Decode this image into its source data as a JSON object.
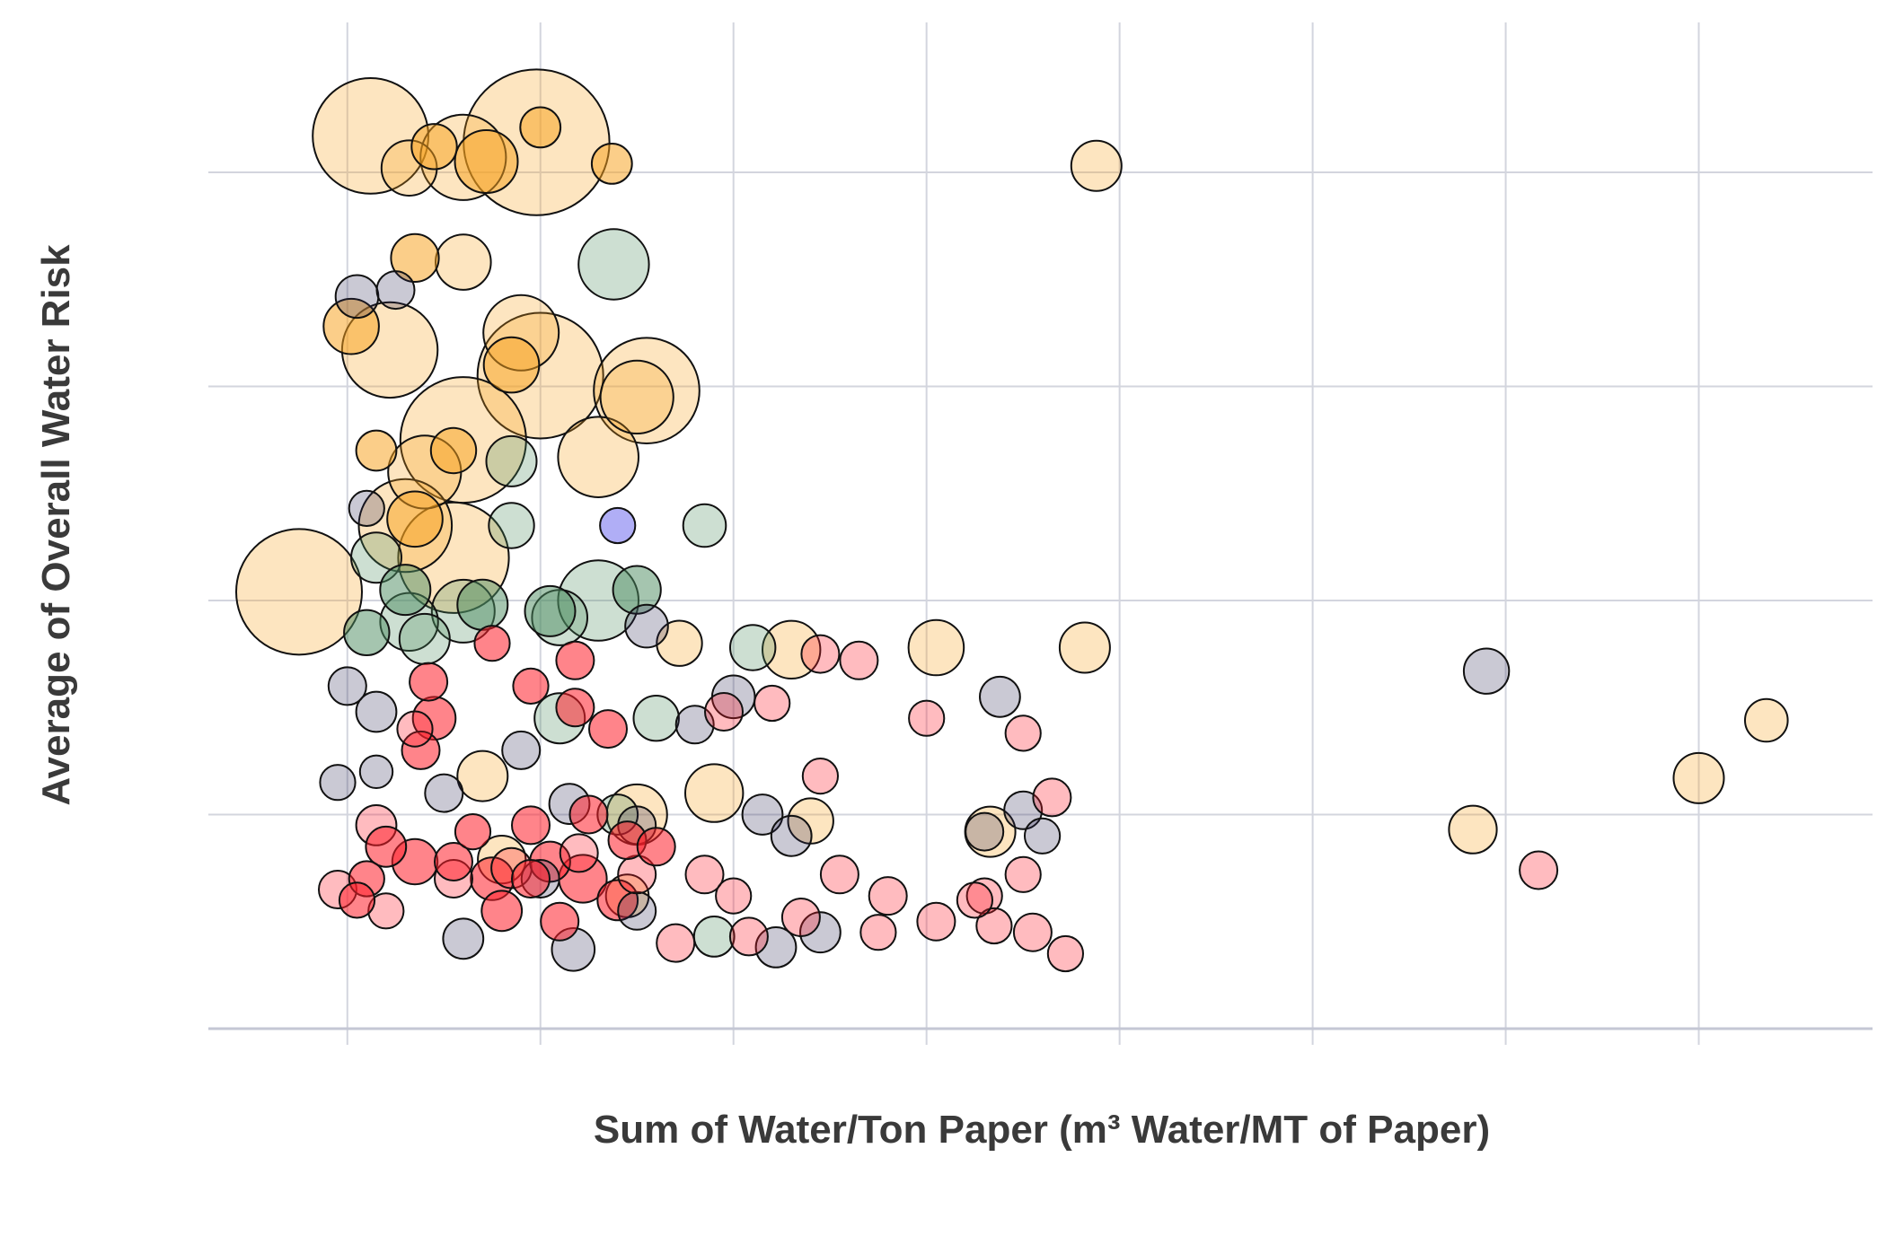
{
  "chart_data": {
    "type": "scatter",
    "xlabel": "Sum of Water/Ton Paper (m³ Water/MT of Paper)",
    "ylabel": "Average of Overall Water Risk",
    "xlim": [
      -0.72,
      7.9
    ],
    "ylim": [
      0,
      4.7
    ],
    "grid": true,
    "legend": "none",
    "series": [
      {
        "color": "#f8a21c",
        "fill_alpha": 0.28,
        "points": [
          [
            0.12,
            4.17,
            4.6
          ],
          [
            0.98,
            4.14,
            5.8
          ],
          [
            0.6,
            4.07,
            3.4
          ],
          [
            3.88,
            4.03,
            2.0
          ],
          [
            0.32,
            4.02,
            2.2
          ],
          [
            0.6,
            3.58,
            2.2
          ],
          [
            0.22,
            3.17,
            3.8
          ],
          [
            1.0,
            3.05,
            5.0
          ],
          [
            1.55,
            2.98,
            4.2
          ],
          [
            0.6,
            2.75,
            5.0
          ],
          [
            1.3,
            2.67,
            3.2
          ],
          [
            0.3,
            2.35,
            3.7
          ],
          [
            -0.25,
            2.04,
            5.0
          ],
          [
            0.55,
            2.2,
            4.4
          ],
          [
            3.05,
            1.78,
            2.2
          ],
          [
            3.82,
            1.78,
            2.0
          ],
          [
            2.3,
            1.77,
            2.3
          ],
          [
            1.72,
            1.8,
            1.8
          ],
          [
            0.7,
            1.18,
            2.0
          ],
          [
            1.9,
            1.1,
            2.3
          ],
          [
            1.5,
            1.0,
            2.4
          ],
          [
            2.4,
            0.97,
            1.8
          ],
          [
            0.8,
            0.79,
            1.9
          ],
          [
            1.45,
            0.62,
            1.7
          ],
          [
            3.33,
            0.92,
            2.0
          ],
          [
            5.83,
            0.93,
            1.9
          ],
          [
            7.0,
            1.17,
            2.0
          ],
          [
            7.35,
            1.44,
            1.7
          ],
          [
            0.9,
            3.25,
            3.0
          ],
          [
            1.5,
            2.95,
            2.9
          ],
          [
            0.4,
            2.6,
            2.9
          ]
        ]
      },
      {
        "color": "#f8a21c",
        "fill_alpha": 0.52,
        "points": [
          [
            0.45,
            4.12,
            1.8
          ],
          [
            0.72,
            4.05,
            2.5
          ],
          [
            1.0,
            4.21,
            1.6
          ],
          [
            1.37,
            4.04,
            1.6
          ],
          [
            0.35,
            3.6,
            1.9
          ],
          [
            0.02,
            3.28,
            2.2
          ],
          [
            0.15,
            2.7,
            1.6
          ],
          [
            0.55,
            2.7,
            1.8
          ],
          [
            0.35,
            2.38,
            2.2
          ],
          [
            0.85,
            3.1,
            2.2
          ]
        ]
      },
      {
        "color": "#4c8c5f",
        "fill_alpha": 0.28,
        "points": [
          [
            1.38,
            3.57,
            2.8
          ],
          [
            0.85,
            2.65,
            2.0
          ],
          [
            0.85,
            2.35,
            1.8
          ],
          [
            0.15,
            2.2,
            2.0
          ],
          [
            1.3,
            2.0,
            3.2
          ],
          [
            0.32,
            1.9,
            2.3
          ],
          [
            0.6,
            1.95,
            2.5
          ],
          [
            1.1,
            1.92,
            2.2
          ],
          [
            2.1,
            1.78,
            1.8
          ],
          [
            1.6,
            1.45,
            1.8
          ],
          [
            1.1,
            1.45,
            2.0
          ],
          [
            1.4,
            1.0,
            1.6
          ],
          [
            0.4,
            1.82,
            2.0
          ],
          [
            1.9,
            0.43,
            1.6
          ],
          [
            1.85,
            2.35,
            1.7
          ]
        ]
      },
      {
        "color": "#4c8c5f",
        "fill_alpha": 0.5,
        "points": [
          [
            0.1,
            1.85,
            1.8
          ],
          [
            0.3,
            2.05,
            2.0
          ],
          [
            0.7,
            1.98,
            2.0
          ],
          [
            1.5,
            2.05,
            1.9
          ],
          [
            1.05,
            1.95,
            2.0
          ]
        ]
      },
      {
        "color": "#2d2855",
        "fill_alpha": 0.25,
        "points": [
          [
            0.05,
            3.42,
            1.7
          ],
          [
            0.25,
            3.45,
            1.5
          ],
          [
            0.1,
            2.43,
            1.4
          ],
          [
            1.55,
            1.88,
            1.7
          ],
          [
            0.0,
            1.6,
            1.5
          ],
          [
            0.15,
            1.48,
            1.6
          ],
          [
            -0.05,
            1.15,
            1.4
          ],
          [
            0.15,
            1.2,
            1.3
          ],
          [
            0.5,
            1.1,
            1.5
          ],
          [
            0.9,
            1.3,
            1.5
          ],
          [
            1.15,
            1.05,
            1.6
          ],
          [
            1.5,
            0.95,
            1.5
          ],
          [
            2.15,
            1.0,
            1.6
          ],
          [
            2.3,
            0.9,
            1.6
          ],
          [
            3.5,
            1.02,
            1.5
          ],
          [
            3.38,
            1.55,
            1.6
          ],
          [
            0.6,
            0.42,
            1.6
          ],
          [
            1.17,
            0.37,
            1.7
          ],
          [
            1.5,
            0.55,
            1.5
          ],
          [
            2.22,
            0.38,
            1.6
          ],
          [
            2.45,
            0.45,
            1.6
          ],
          [
            1.0,
            0.7,
            1.5
          ],
          [
            1.8,
            1.42,
            1.5
          ],
          [
            5.9,
            1.67,
            1.8
          ],
          [
            2.0,
            1.55,
            1.7
          ],
          [
            3.6,
            0.9,
            1.4
          ],
          [
            3.3,
            0.92,
            1.5
          ]
        ]
      },
      {
        "color": "#3a34e8",
        "fill_alpha": 0.4,
        "points": [
          [
            1.4,
            2.35,
            1.4
          ]
        ]
      },
      {
        "color": "#ff1f2a",
        "fill_alpha": 0.3,
        "points": [
          [
            2.45,
            1.75,
            1.5
          ],
          [
            2.65,
            1.72,
            1.5
          ],
          [
            0.15,
            0.95,
            1.6
          ],
          [
            -0.05,
            0.65,
            1.5
          ],
          [
            0.2,
            0.55,
            1.4
          ],
          [
            0.55,
            0.7,
            1.5
          ],
          [
            0.85,
            0.75,
            1.6
          ],
          [
            1.2,
            0.82,
            1.5
          ],
          [
            1.5,
            0.72,
            1.5
          ],
          [
            1.85,
            0.72,
            1.5
          ],
          [
            2.0,
            0.62,
            1.4
          ],
          [
            2.35,
            0.52,
            1.5
          ],
          [
            2.75,
            0.45,
            1.4
          ],
          [
            3.05,
            0.5,
            1.5
          ],
          [
            3.3,
            0.62,
            1.4
          ],
          [
            3.55,
            0.45,
            1.5
          ],
          [
            3.72,
            0.35,
            1.4
          ],
          [
            3.65,
            1.08,
            1.5
          ],
          [
            3.5,
            0.72,
            1.4
          ],
          [
            2.55,
            0.72,
            1.5
          ],
          [
            3.0,
            1.45,
            1.4
          ],
          [
            3.5,
            1.38,
            1.4
          ],
          [
            2.2,
            1.52,
            1.4
          ],
          [
            2.45,
            1.18,
            1.4
          ],
          [
            1.95,
            1.48,
            1.5
          ],
          [
            6.17,
            0.74,
            1.5
          ],
          [
            1.7,
            0.4,
            1.5
          ],
          [
            2.08,
            0.43,
            1.5
          ],
          [
            0.35,
            1.4,
            1.4
          ],
          [
            2.8,
            0.62,
            1.5
          ],
          [
            3.35,
            0.48,
            1.4
          ],
          [
            3.25,
            0.6,
            1.4
          ]
        ]
      },
      {
        "color": "#ff1f2a",
        "fill_alpha": 0.55,
        "points": [
          [
            0.42,
            1.62,
            1.5
          ],
          [
            0.45,
            1.45,
            1.7
          ],
          [
            0.38,
            1.3,
            1.5
          ],
          [
            0.75,
            1.8,
            1.4
          ],
          [
            0.95,
            1.6,
            1.4
          ],
          [
            1.18,
            1.72,
            1.5
          ],
          [
            1.18,
            1.5,
            1.5
          ],
          [
            1.35,
            1.4,
            1.5
          ],
          [
            0.2,
            0.85,
            1.6
          ],
          [
            0.35,
            0.78,
            1.8
          ],
          [
            0.55,
            0.78,
            1.5
          ],
          [
            0.75,
            0.7,
            1.7
          ],
          [
            0.95,
            0.95,
            1.5
          ],
          [
            1.05,
            0.78,
            1.6
          ],
          [
            1.22,
            0.7,
            1.9
          ],
          [
            1.4,
            0.6,
            1.6
          ],
          [
            1.25,
            1.0,
            1.5
          ],
          [
            1.45,
            0.88,
            1.5
          ],
          [
            0.1,
            0.7,
            1.4
          ],
          [
            1.6,
            0.85,
            1.5
          ],
          [
            0.05,
            0.6,
            1.4
          ],
          [
            0.65,
            0.92,
            1.4
          ],
          [
            0.95,
            0.7,
            1.5
          ],
          [
            1.1,
            0.5,
            1.5
          ],
          [
            0.8,
            0.55,
            1.6
          ]
        ]
      }
    ]
  }
}
